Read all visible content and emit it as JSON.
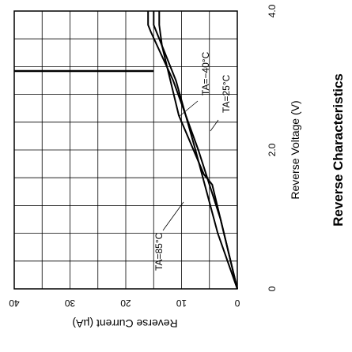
{
  "chart_data": {
    "type": "line",
    "title": "Reverse Characteristics",
    "xlabel": "Reverse Voltage (V)",
    "ylabel": "Reverse Current  (µA)",
    "x_ticks": [
      "0",
      "2.0",
      "4.0"
    ],
    "y_ticks": [
      "40",
      "30",
      "20",
      "10",
      "0"
    ],
    "xlim": [
      0,
      4.0
    ],
    "ylim": [
      0,
      40
    ],
    "grid": true,
    "orientation": "rotated-90",
    "series": [
      {
        "name": "TA=−40°C",
        "x": [
          0,
          1.5,
          1.65,
          2.5,
          3.5,
          3.8,
          4.0
        ],
        "y": [
          0,
          4.5,
          6.0,
          10.5,
          13.5,
          14.0,
          14.0
        ]
      },
      {
        "name": "TA=25°C",
        "x": [
          0,
          0.8,
          2.0,
          3.0,
          3.7,
          3.8,
          4.0
        ],
        "y": [
          0,
          3.5,
          7.5,
          11.0,
          14.5,
          15.0,
          15.0
        ]
      },
      {
        "name": "TA=85°C",
        "x": [
          0,
          1.0,
          2.0,
          3.0,
          3.7,
          3.8,
          4.0
        ],
        "y": [
          0,
          3.0,
          7.0,
          11.5,
          15.5,
          16.0,
          16.0
        ]
      }
    ]
  },
  "labels": {
    "series_40": "TA=−40°C",
    "series_25": "TA=25°C",
    "series_85": "TA=85°C"
  }
}
